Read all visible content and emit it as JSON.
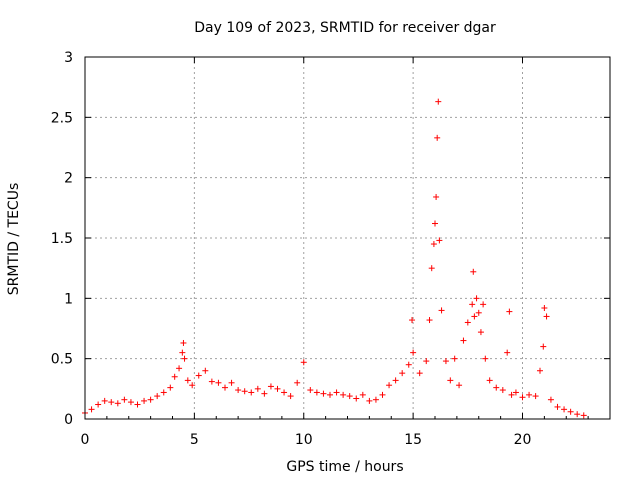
{
  "chart_data": {
    "type": "scatter",
    "title": "Day 109 of 2023, SRMTID for receiver dgar",
    "xlabel": "GPS time / hours",
    "ylabel": "SRMTID / TECUs",
    "xlim": [
      0,
      24
    ],
    "ylim": [
      0,
      3
    ],
    "xticks": [
      0,
      5,
      10,
      15,
      20
    ],
    "xtick_labels": [
      "0",
      "5",
      "10",
      "15",
      "20"
    ],
    "yticks": [
      0,
      0.5,
      1,
      1.5,
      2,
      2.5,
      3
    ],
    "ytick_labels": [
      "0",
      "0.5",
      "1",
      "1.5",
      "2",
      "2.5",
      "3"
    ],
    "grid": true,
    "marker": "+",
    "color": "#ff0000",
    "series": [
      {
        "name": "SRMTID",
        "x": [
          0.0,
          0.3,
          0.6,
          0.9,
          1.2,
          1.5,
          1.8,
          2.1,
          2.4,
          2.7,
          3.0,
          3.3,
          3.6,
          3.9,
          4.1,
          4.3,
          4.45,
          4.5,
          4.55,
          4.7,
          4.9,
          5.2,
          5.5,
          5.8,
          6.1,
          6.4,
          6.7,
          7.0,
          7.3,
          7.6,
          7.9,
          8.2,
          8.5,
          8.8,
          9.1,
          9.4,
          9.7,
          10.0,
          10.3,
          10.6,
          10.9,
          11.2,
          11.5,
          11.8,
          12.1,
          12.4,
          12.7,
          13.0,
          13.3,
          13.6,
          13.9,
          14.2,
          14.5,
          14.8,
          14.95,
          15.0,
          15.3,
          15.6,
          15.75,
          15.85,
          15.95,
          16.0,
          16.05,
          16.1,
          16.15,
          16.2,
          16.3,
          16.5,
          16.7,
          16.9,
          17.1,
          17.3,
          17.5,
          17.7,
          17.75,
          17.8,
          17.9,
          18.0,
          18.1,
          18.2,
          18.3,
          18.5,
          18.8,
          19.1,
          19.3,
          19.4,
          19.5,
          19.7,
          20.0,
          20.3,
          20.6,
          20.8,
          20.95,
          21.0,
          21.1,
          21.3,
          21.6,
          21.9,
          22.2,
          22.5,
          22.8
        ],
        "y": [
          0.05,
          0.08,
          0.12,
          0.15,
          0.14,
          0.13,
          0.16,
          0.14,
          0.12,
          0.15,
          0.16,
          0.19,
          0.22,
          0.26,
          0.35,
          0.42,
          0.55,
          0.63,
          0.5,
          0.32,
          0.28,
          0.36,
          0.4,
          0.31,
          0.3,
          0.26,
          0.3,
          0.24,
          0.23,
          0.22,
          0.25,
          0.21,
          0.27,
          0.25,
          0.22,
          0.19,
          0.3,
          0.47,
          0.24,
          0.22,
          0.21,
          0.2,
          0.22,
          0.2,
          0.19,
          0.17,
          0.2,
          0.15,
          0.16,
          0.2,
          0.28,
          0.32,
          0.38,
          0.45,
          0.82,
          0.55,
          0.38,
          0.48,
          0.82,
          1.25,
          1.45,
          1.62,
          1.84,
          2.33,
          2.63,
          1.48,
          0.9,
          0.48,
          0.32,
          0.5,
          0.28,
          0.65,
          0.8,
          0.95,
          1.22,
          0.85,
          1.0,
          0.88,
          0.72,
          0.95,
          0.5,
          0.32,
          0.26,
          0.24,
          0.55,
          0.89,
          0.2,
          0.22,
          0.18,
          0.2,
          0.19,
          0.4,
          0.6,
          0.92,
          0.85,
          0.16,
          0.1,
          0.08,
          0.06,
          0.04,
          0.03
        ]
      }
    ]
  }
}
